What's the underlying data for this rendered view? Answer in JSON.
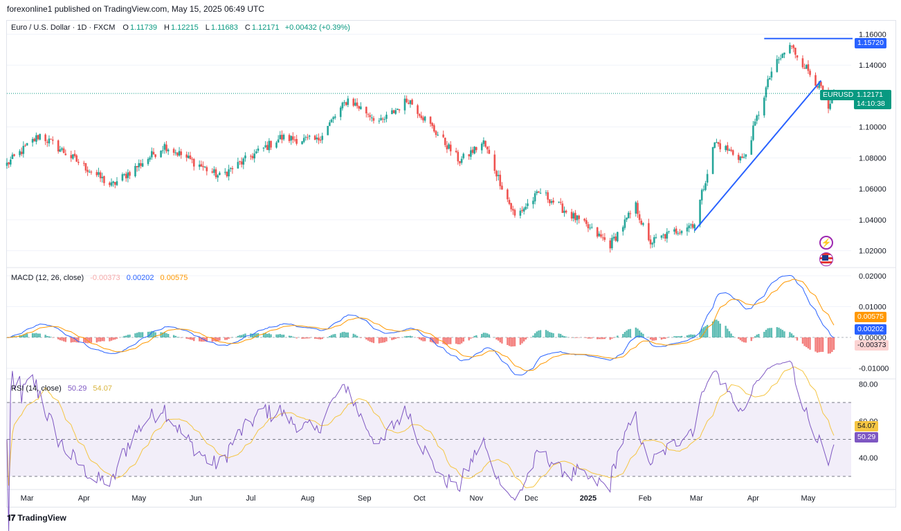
{
  "header": {
    "published": "forexonline1 published on TradingView.com, May 15, 2025 06:49 UTC"
  },
  "legend": {
    "symbol": "Euro / U.S. Dollar · 1D · FXCM",
    "o_label": "O",
    "o": "1.11739",
    "h_label": "H",
    "h": "1.12215",
    "l_label": "L",
    "l": "1.11683",
    "c_label": "C",
    "c": "1.12171",
    "change": "+0.00432 (+0.39%)",
    "macd_title": "MACD (12, 26, close)",
    "macd_hist": "-0.00373",
    "macd_line": "0.00202",
    "macd_signal": "0.00575",
    "rsi_title": "RSI (14, close)",
    "rsi": "50.29",
    "rsi_ma": "54.07"
  },
  "price_scale": {
    "labels": [
      "1.16000",
      "1.14000",
      "1.10000",
      "1.08000",
      "1.06000",
      "1.04000",
      "1.02000"
    ],
    "high_label": "1.15720",
    "symbol_tag": "EURUSD",
    "last_price": "1.12171",
    "countdown": "14:10:38"
  },
  "macd_scale": {
    "labels": [
      "0.02000",
      "0.01000",
      "0.00000",
      "-0.01000"
    ],
    "signal_tag": "0.00575",
    "macd_tag": "0.00202",
    "hist_tag": "-0.00373"
  },
  "rsi_scale": {
    "labels": [
      "80.00",
      "60.00",
      "40.00"
    ],
    "ma_tag": "54.07",
    "rsi_tag": "50.29"
  },
  "time_axis": {
    "labels": [
      "Mar",
      "Apr",
      "May",
      "Jun",
      "Jul",
      "Aug",
      "Sep",
      "Oct",
      "Nov",
      "Dec",
      "2025",
      "Feb",
      "Mar",
      "Apr",
      "May"
    ]
  },
  "footer": {
    "brand": "TradingView"
  },
  "colors": {
    "up": "#26a69a",
    "down": "#ef5350",
    "macd": "#2962ff",
    "signal": "#ff9800",
    "rsi": "#7e57c2",
    "rsi_ma": "#f5c542",
    "trend": "#2962ff"
  },
  "chart_data": {
    "type": "candlestick",
    "x_start": "2024-02-19",
    "x_end": "2025-05-15",
    "ylim": [
      1.01,
      1.162
    ],
    "anchors": [
      [
        "2024-02-19",
        1.076
      ],
      [
        "2024-03-08",
        1.095
      ],
      [
        "2024-04-16",
        1.062
      ],
      [
        "2024-05-15",
        1.088
      ],
      [
        "2024-06-14",
        1.068
      ],
      [
        "2024-07-17",
        1.093
      ],
      [
        "2024-08-06",
        1.091
      ],
      [
        "2024-08-23",
        1.118
      ],
      [
        "2024-09-10",
        1.103
      ],
      [
        "2024-09-25",
        1.118
      ],
      [
        "2024-10-23",
        1.078
      ],
      [
        "2024-11-05",
        1.09
      ],
      [
        "2024-11-22",
        1.042
      ],
      [
        "2024-12-06",
        1.058
      ],
      [
        "2025-01-13",
        1.024
      ],
      [
        "2025-01-27",
        1.049
      ],
      [
        "2025-02-03",
        1.025
      ],
      [
        "2025-02-28",
        1.038
      ],
      [
        "2025-03-11",
        1.09
      ],
      [
        "2025-03-27",
        1.079
      ],
      [
        "2025-04-11",
        1.136
      ],
      [
        "2025-04-21",
        1.153
      ],
      [
        "2025-05-09",
        1.123
      ],
      [
        "2025-05-12",
        1.109
      ],
      [
        "2025-05-15",
        1.1217
      ]
    ],
    "high_line": {
      "from": "2025-04-07",
      "to": "2025-05-22",
      "y": 1.1572
    },
    "trendline": {
      "from": [
        "2025-02-28",
        1.033
      ],
      "to": [
        "2025-05-08",
        1.13
      ]
    },
    "macd_ylim": [
      -0.013,
      0.022
    ],
    "rsi_ylim": [
      24,
      82
    ],
    "rsi_levels": [
      70,
      50,
      30
    ]
  }
}
